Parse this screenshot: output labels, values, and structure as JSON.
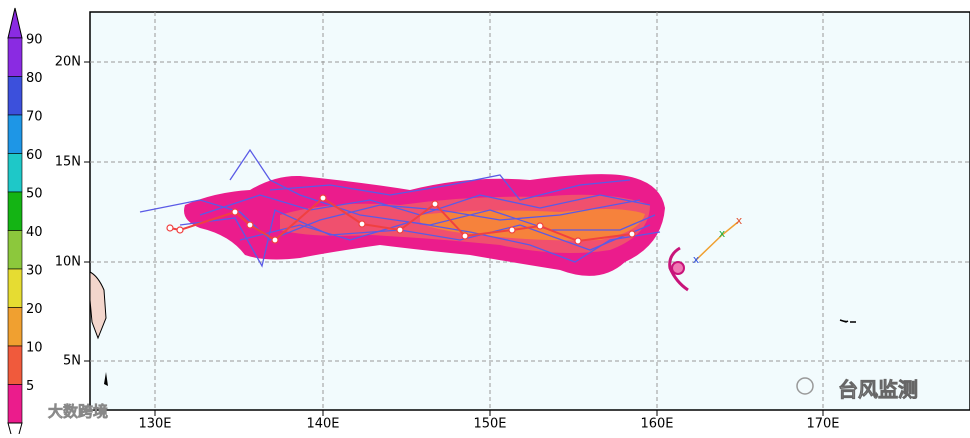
{
  "colorbar": {
    "labels": [
      "90",
      "80",
      "70",
      "60",
      "50",
      "40",
      "30",
      "20",
      "10",
      "5"
    ]
  },
  "longitude_labels": [
    "130E",
    "140E",
    "150E",
    "160E",
    "170E"
  ],
  "latitude_labels": [
    "20N",
    "15N",
    "10N",
    "5N"
  ],
  "watermark_left": "大数跨境",
  "watermark_right": "台风监测"
}
